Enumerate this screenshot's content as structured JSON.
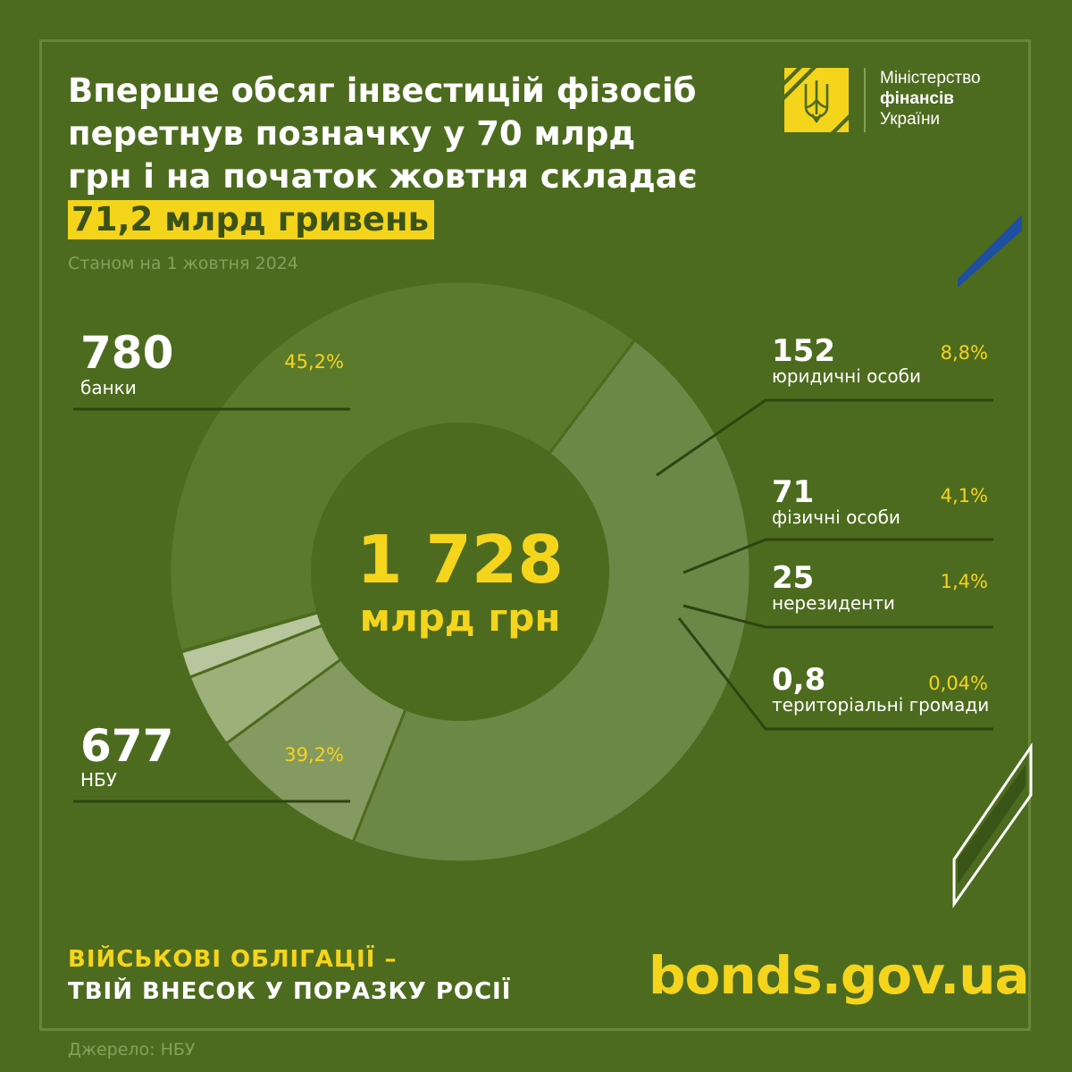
{
  "header": {
    "title_lines": [
      "Вперше обсяг інвестицій фізосіб",
      "перетнув позначку у 70 млрд",
      "грн і на початок жовтня складає"
    ],
    "title_highlight": "71,2 млрд гривень",
    "subtitle": "Станом на 1 жовтня 2024"
  },
  "logo": {
    "line1": "Міністерство",
    "line2": "фінансів",
    "line3": "України",
    "icon": "trident-icon"
  },
  "chart_data": {
    "type": "pie",
    "center_value": "1 728",
    "center_unit": "млрд грн",
    "slices": [
      {
        "value": 780,
        "value_label": "780",
        "category": "банки",
        "percent": 45.2,
        "percent_label": "45,2%",
        "color": "#6d8846"
      },
      {
        "value": 152,
        "value_label": "152",
        "category": "юридичні особи",
        "percent": 8.8,
        "percent_label": "8,8%",
        "color": "#859a60"
      },
      {
        "value": 71,
        "value_label": "71",
        "category": "фізичні особи",
        "percent": 4.1,
        "percent_label": "4,1%",
        "color": "#9db07a"
      },
      {
        "value": 25,
        "value_label": "25",
        "category": "нерезиденти",
        "percent": 1.4,
        "percent_label": "1,4%",
        "color": "#b7c69c"
      },
      {
        "value": 0.8,
        "value_label": "0,8",
        "category": "територіальні громади",
        "percent": 0.04,
        "percent_label": "0,04%",
        "color": "#b7c69c"
      },
      {
        "value": 677,
        "value_label": "677",
        "category": "НБУ",
        "percent": 39.2,
        "percent_label": "39,2%",
        "color": "#5c7a2c"
      }
    ]
  },
  "footer": {
    "slogan_line1": "ВІЙСЬКОВІ ОБЛІГАЦІЇ –",
    "slogan_line2": "ТВІЙ ВНЕСОК У ПОРАЗКУ РОСІЇ",
    "website": "bonds.gov.ua",
    "source": "Джерело: НБУ"
  },
  "colors": {
    "background": "#4d6b1e",
    "accent": "#f5d41c",
    "blue": "#1f4fa0"
  }
}
